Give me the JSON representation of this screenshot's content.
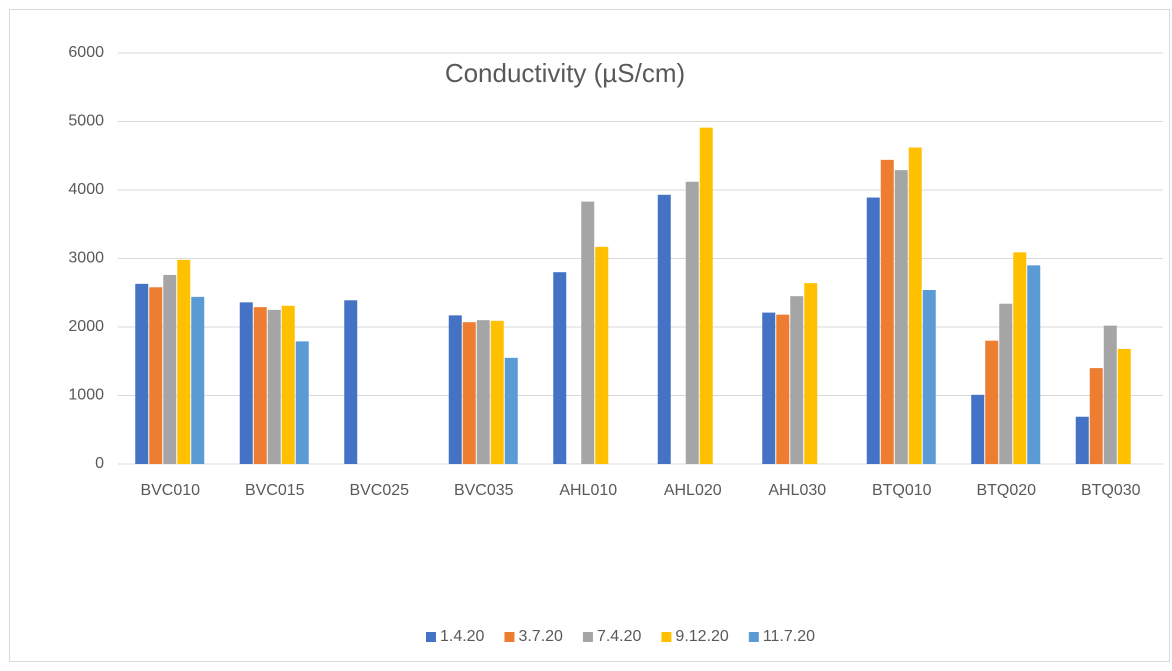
{
  "chart_data": {
    "type": "bar",
    "title": "Conductivity (µS/cm)",
    "categories": [
      "BVC010",
      "BVC015",
      "BVC025",
      "BVC035",
      "AHL010",
      "AHL020",
      "AHL030",
      "BTQ010",
      "BTQ020",
      "BTQ030"
    ],
    "series": [
      {
        "name": "1.4.20",
        "color": "#4472c4",
        "values": [
          2630,
          2360,
          2390,
          2170,
          2800,
          3930,
          2210,
          3890,
          1010,
          690
        ]
      },
      {
        "name": "3.7.20",
        "color": "#ed7d31",
        "values": [
          2580,
          2290,
          null,
          2070,
          null,
          null,
          2180,
          4440,
          1800,
          1400
        ]
      },
      {
        "name": "7.4.20",
        "color": "#a5a5a5",
        "values": [
          2760,
          2250,
          null,
          2100,
          3830,
          4120,
          2450,
          4290,
          2340,
          2020
        ]
      },
      {
        "name": "9.12.20",
        "color": "#ffc000",
        "values": [
          2980,
          2310,
          null,
          2090,
          3170,
          4910,
          2640,
          4620,
          3090,
          1680
        ]
      },
      {
        "name": "11.7.20",
        "color": "#5b9bd5",
        "values": [
          2440,
          1790,
          null,
          1550,
          null,
          null,
          null,
          2540,
          2900,
          null
        ]
      }
    ],
    "ylim": [
      0,
      6000
    ],
    "yticks": [
      0,
      1000,
      2000,
      3000,
      4000,
      5000,
      6000
    ],
    "grid": true,
    "legend": "bottom"
  }
}
